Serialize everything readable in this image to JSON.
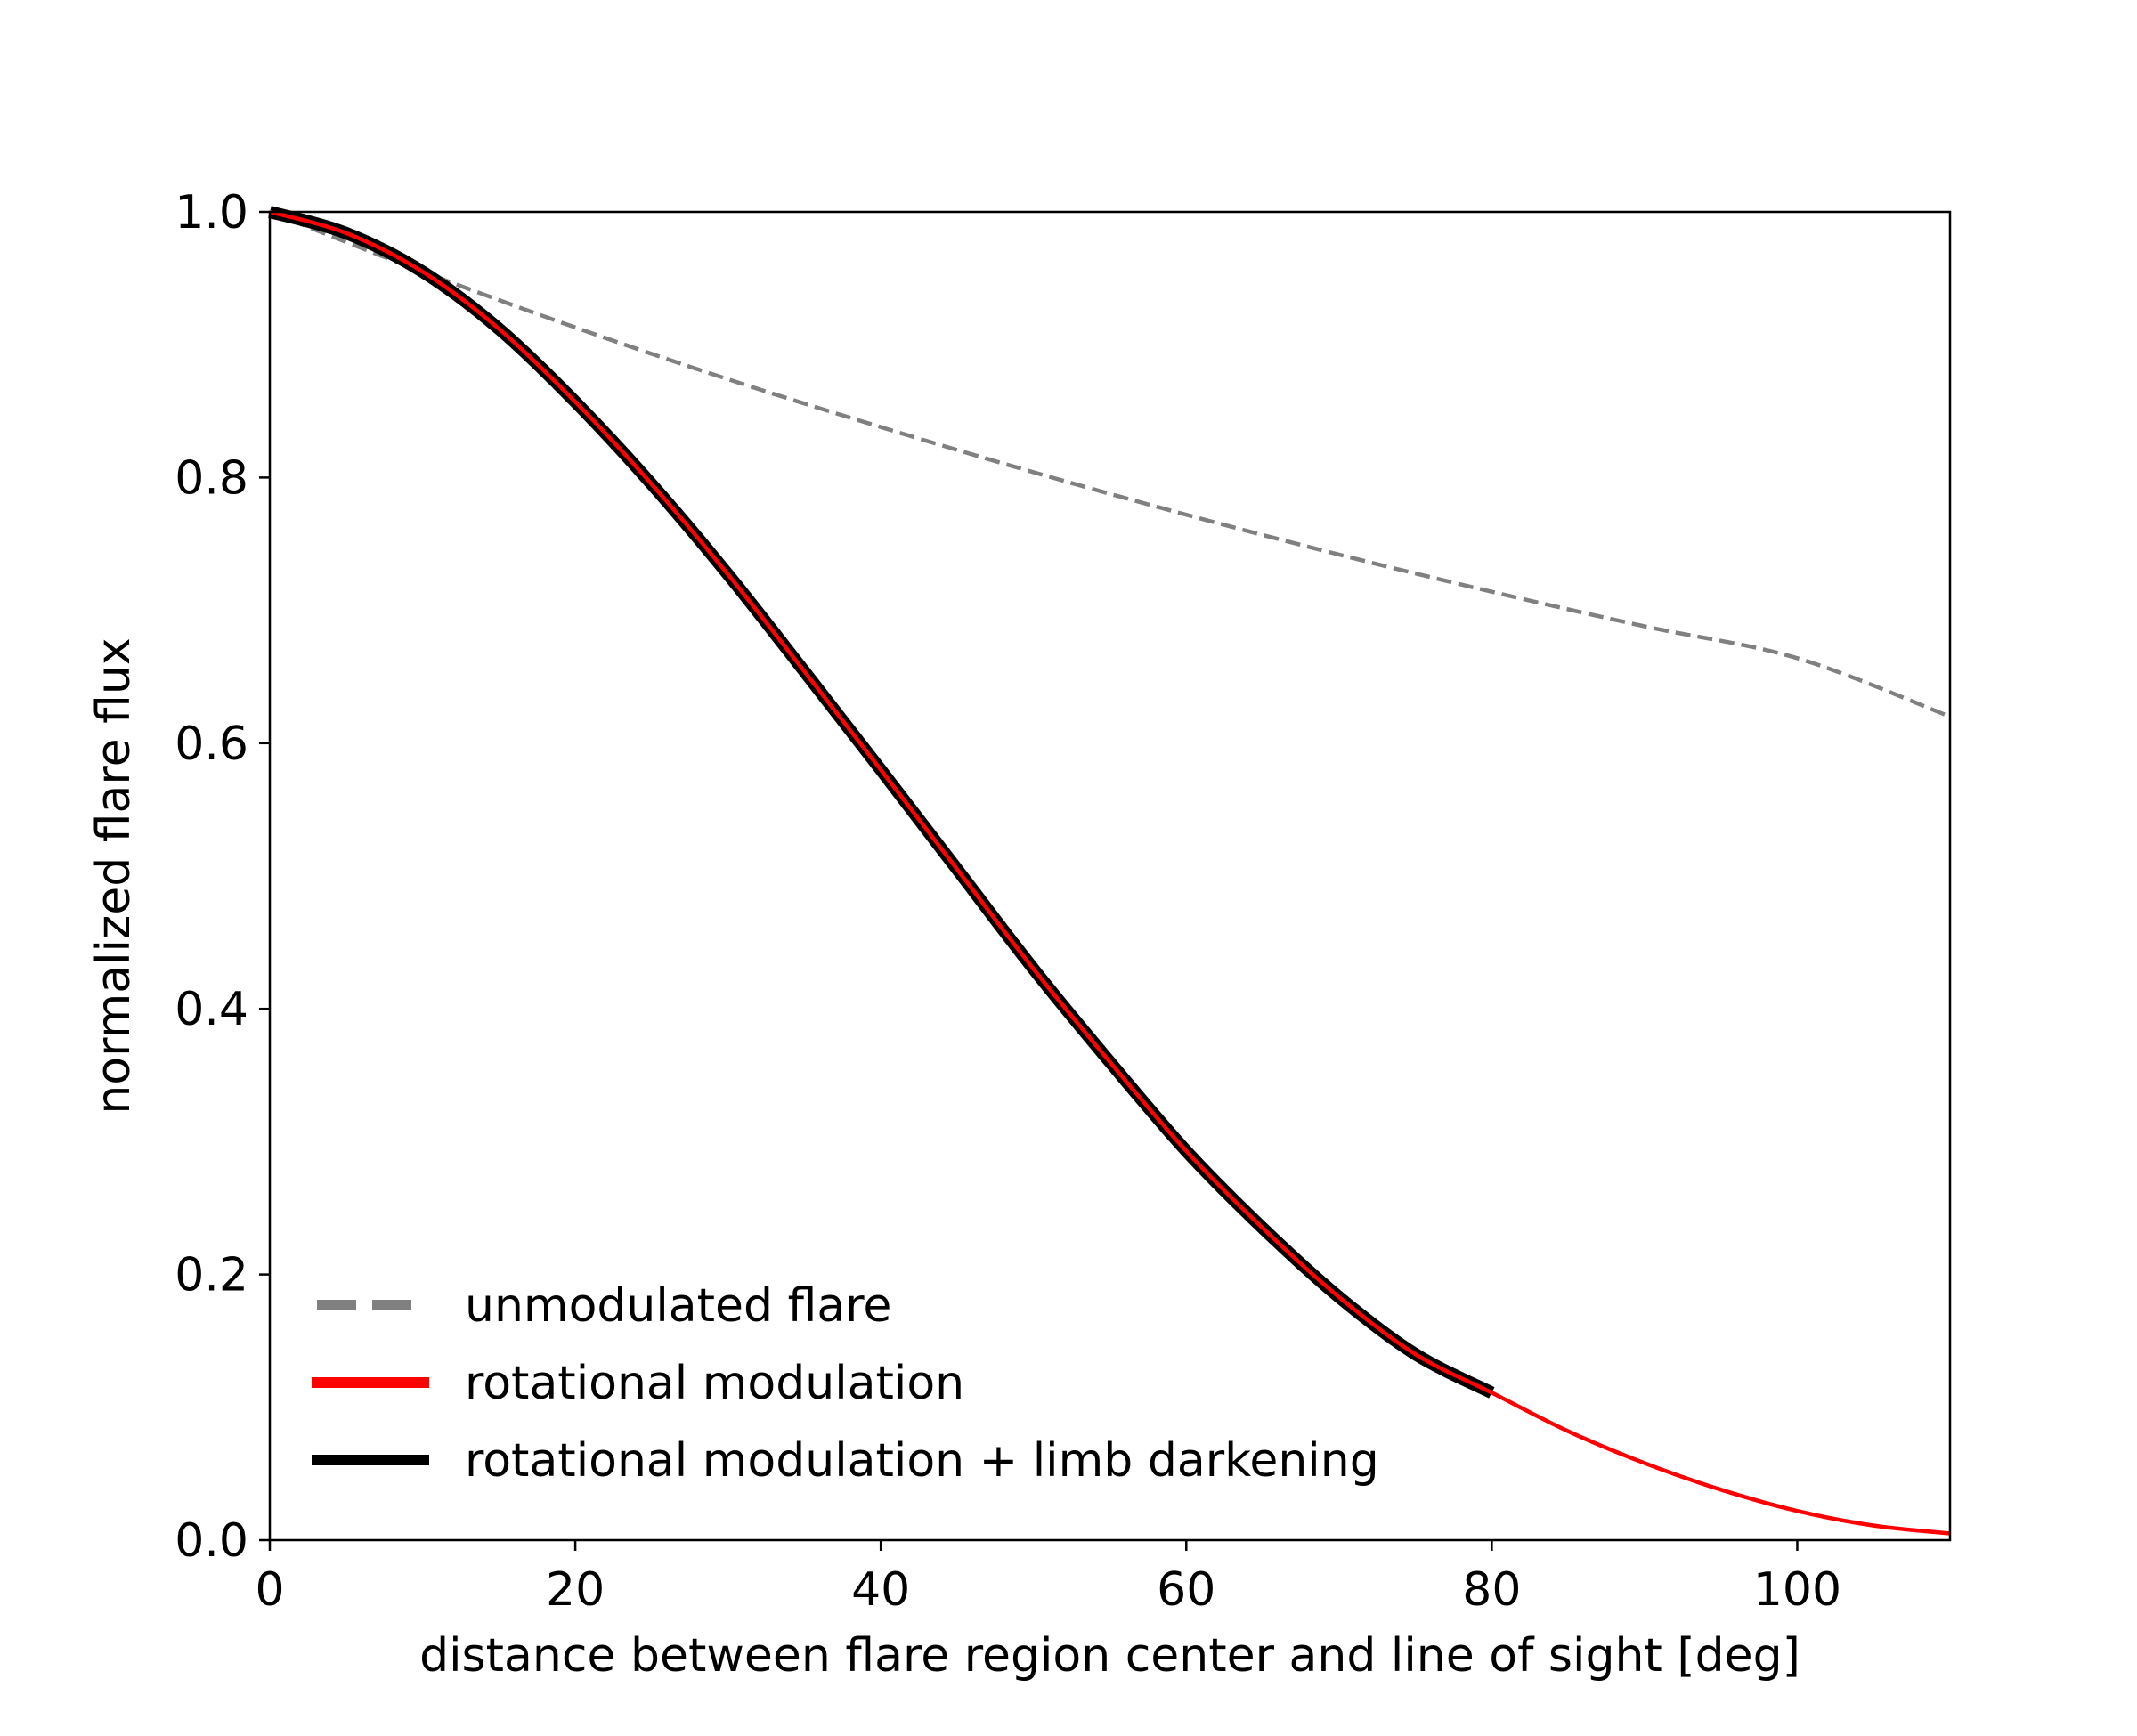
{
  "chart_data": {
    "type": "line",
    "title": "",
    "xlabel": "distance between flare region center and line of sight [deg]",
    "ylabel": "normalized flare flux",
    "xlim": [
      0,
      110
    ],
    "ylim": [
      0,
      1.0
    ],
    "x_ticks": [
      0,
      20,
      40,
      60,
      80,
      100
    ],
    "y_ticks": [
      0.0,
      0.2,
      0.4,
      0.6,
      0.8,
      1.0
    ],
    "x_tick_labels": [
      "0",
      "20",
      "40",
      "60",
      "80",
      "100"
    ],
    "y_tick_labels": [
      "0.0",
      "0.2",
      "0.4",
      "0.6",
      "0.8",
      "1.0"
    ],
    "grid": false,
    "legend_position": "lower-left",
    "series": [
      {
        "name": "unmodulated flare",
        "color": "#808080",
        "style": "dashed",
        "x": [
          0,
          10,
          20,
          30,
          40,
          50,
          60,
          70,
          80,
          90,
          100,
          110
        ],
        "y": [
          1.0,
          0.955,
          0.913,
          0.874,
          0.838,
          0.804,
          0.772,
          0.742,
          0.714,
          0.688,
          0.664,
          0.62
        ]
      },
      {
        "name": "rotational modulation + limb darkening",
        "color": "#000000",
        "style": "solid-band",
        "x": [
          0,
          5,
          10,
          15,
          20,
          25,
          30,
          35,
          40,
          45,
          50,
          55,
          60,
          65,
          70,
          75,
          80
        ],
        "y": [
          1.0,
          0.984,
          0.955,
          0.912,
          0.857,
          0.795,
          0.727,
          0.654,
          0.58,
          0.505,
          0.43,
          0.36,
          0.293,
          0.235,
          0.183,
          0.14,
          0.111
        ]
      },
      {
        "name": "rotational modulation",
        "color": "#ff0000",
        "style": "solid",
        "x": [
          0,
          5,
          10,
          15,
          20,
          25,
          30,
          35,
          40,
          45,
          50,
          55,
          60,
          65,
          70,
          75,
          80,
          85,
          90,
          95,
          100,
          105,
          110
        ],
        "y": [
          1.0,
          0.984,
          0.955,
          0.912,
          0.857,
          0.795,
          0.727,
          0.654,
          0.58,
          0.505,
          0.43,
          0.36,
          0.293,
          0.235,
          0.183,
          0.14,
          0.111,
          0.082,
          0.058,
          0.038,
          0.022,
          0.011,
          0.005
        ]
      }
    ],
    "legend": [
      {
        "label": "unmodulated flare",
        "color": "#808080",
        "style": "dashed"
      },
      {
        "label": "rotational modulation",
        "color": "#ff0000",
        "style": "solid"
      },
      {
        "label": "rotational modulation + limb darkening",
        "color": "#000000",
        "style": "solid"
      }
    ]
  }
}
